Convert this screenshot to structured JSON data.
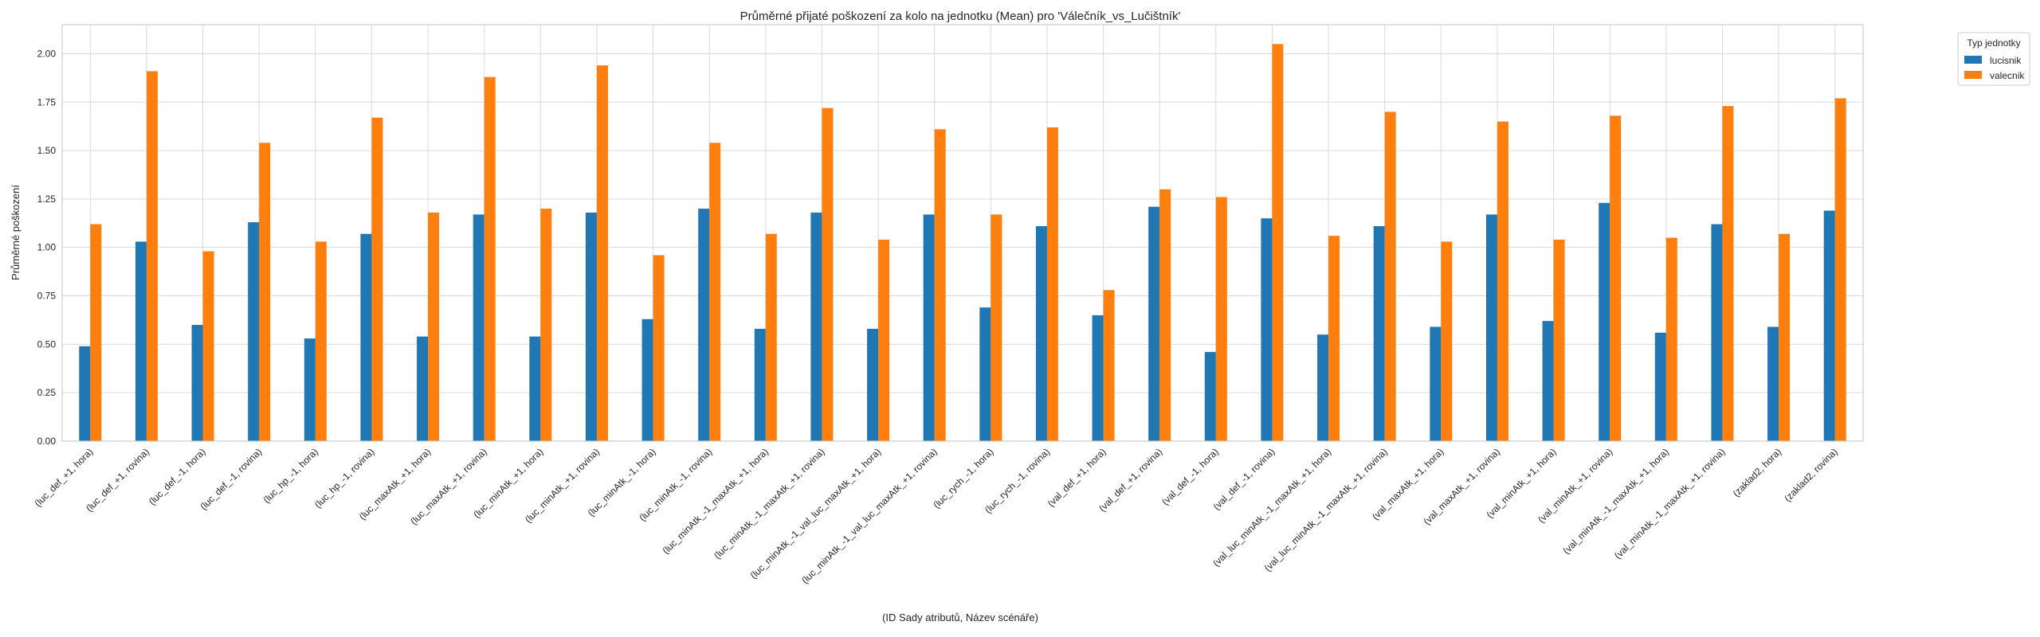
{
  "chart_data": {
    "type": "bar",
    "title": "Průměrné přijaté poškození za kolo na jednotku (Mean) pro 'Válečník_vs_Lučištník'",
    "xlabel": "(ID Sady atributů, Název scénáře)",
    "ylabel": "Průměrné poškození",
    "ylim": [
      0,
      2.15
    ],
    "yticks": [
      "0.00",
      "0.25",
      "0.50",
      "0.75",
      "1.00",
      "1.25",
      "1.50",
      "1.75",
      "2.00"
    ],
    "grid": true,
    "legend": {
      "title": "Typ jednotky",
      "placement": "outside-top-right"
    },
    "categories": [
      "(luc_def_+1, hora)",
      "(luc_def_+1, rovina)",
      "(luc_def_-1, hora)",
      "(luc_def_-1, rovina)",
      "(luc_hp_-1, hora)",
      "(luc_hp_-1, rovina)",
      "(luc_maxAtk_+1, hora)",
      "(luc_maxAtk_+1, rovina)",
      "(luc_minAtk_+1, hora)",
      "(luc_minAtk_+1, rovina)",
      "(luc_minAtk_-1, hora)",
      "(luc_minAtk_-1, rovina)",
      "(luc_minAtk_-1_maxAtk_+1, hora)",
      "(luc_minAtk_-1_maxAtk_+1, rovina)",
      "(luc_minAtk_-1_val_luc_maxAtk_+1, hora)",
      "(luc_minAtk_-1_val_luc_maxAtk_+1, rovina)",
      "(luc_rych_-1, hora)",
      "(luc_rych_-1, rovina)",
      "(val_def_+1, hora)",
      "(val_def_+1, rovina)",
      "(val_def_-1, hora)",
      "(val_def_-1, rovina)",
      "(val_luc_minAtk_-1_maxAtk_+1, hora)",
      "(val_luc_minAtk_-1_maxAtk_+1, rovina)",
      "(val_maxAtk_+1, hora)",
      "(val_maxAtk_+1, rovina)",
      "(val_minAtk_+1, hora)",
      "(val_minAtk_+1, rovina)",
      "(val_minAtk_-1_maxAtk_+1, hora)",
      "(val_minAtk_-1_maxAtk_+1, rovina)",
      "(zaklad2, hora)",
      "(zaklad2, rovina)"
    ],
    "series": [
      {
        "name": "lucisnik",
        "color": "#1f77b4",
        "values": [
          0.49,
          1.03,
          0.6,
          1.13,
          0.53,
          1.07,
          0.54,
          1.17,
          0.54,
          1.18,
          0.63,
          1.2,
          0.58,
          1.18,
          0.58,
          1.17,
          0.69,
          1.11,
          0.65,
          1.21,
          0.46,
          1.15,
          0.55,
          1.11,
          0.59,
          1.17,
          0.62,
          1.23,
          0.56,
          1.12,
          0.59,
          1.19
        ]
      },
      {
        "name": "valecnik",
        "color": "#ff7f0e",
        "values": [
          1.12,
          1.91,
          0.98,
          1.54,
          1.03,
          1.67,
          1.18,
          1.88,
          1.2,
          1.94,
          0.96,
          1.54,
          1.07,
          1.72,
          1.04,
          1.61,
          1.17,
          1.62,
          0.78,
          1.3,
          1.26,
          2.05,
          1.06,
          1.7,
          1.03,
          1.65,
          1.04,
          1.68,
          1.05,
          1.73,
          1.07,
          1.77
        ]
      }
    ]
  }
}
